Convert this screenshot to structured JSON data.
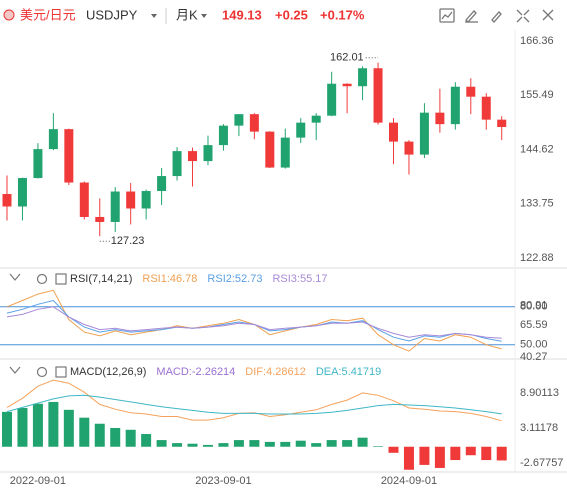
{
  "header": {
    "name": "美元/日元",
    "symbol": "USDJPY",
    "period": "月K",
    "price": "149.13",
    "change": "+0.25",
    "change_pct": "+0.17%"
  },
  "chart_data": [
    {
      "type": "candlestick",
      "categories": [
        null,
        null,
        "2022-09-01",
        null,
        null,
        null,
        null,
        null,
        null,
        null,
        null,
        null,
        null,
        null,
        "2023-09-01",
        null,
        null,
        null,
        null,
        null,
        null,
        null,
        null,
        null,
        null,
        null,
        "2024-09-01",
        null,
        null,
        null,
        null,
        null,
        null
      ],
      "open": [
        135.7,
        133.2,
        138.9,
        144.7,
        148.7,
        138.0,
        131.1,
        130.1,
        136.2,
        132.8,
        136.3,
        139.3,
        144.3,
        142.3,
        145.5,
        149.4,
        151.7,
        148.2,
        141.0,
        147.0,
        150.0,
        151.4,
        157.8,
        157.3,
        160.9,
        150.0,
        146.2,
        143.6,
        152.0,
        149.7,
        157.2,
        155.2,
        150.6
      ],
      "high": [
        139.4,
        139.0,
        145.9,
        151.9,
        148.8,
        138.2,
        134.8,
        137.1,
        137.9,
        136.6,
        140.9,
        145.1,
        145.0,
        147.4,
        149.7,
        151.7,
        151.9,
        148.3,
        148.8,
        150.9,
        151.9,
        160.2,
        157.9,
        161.3,
        162.01,
        150.9,
        146.5,
        153.9,
        156.8,
        158.1,
        158.9,
        155.9,
        151.3
      ],
      "low": [
        130.4,
        130.4,
        138.8,
        144.5,
        137.5,
        130.6,
        127.23,
        128.1,
        129.6,
        130.6,
        133.5,
        138.4,
        137.2,
        141.5,
        144.4,
        147.3,
        146.7,
        140.9,
        140.8,
        145.9,
        146.5,
        151.3,
        151.9,
        154.5,
        149.6,
        141.7,
        139.6,
        142.9,
        148.0,
        148.6,
        151.7,
        148.6,
        146.5
      ],
      "close": [
        133.2,
        138.9,
        144.7,
        148.7,
        138.0,
        131.1,
        130.1,
        136.2,
        132.8,
        136.3,
        139.3,
        144.3,
        142.3,
        145.5,
        149.4,
        151.7,
        148.2,
        141.0,
        147.0,
        150.0,
        151.4,
        157.8,
        157.3,
        160.9,
        150.0,
        146.2,
        143.6,
        152.0,
        149.7,
        157.2,
        155.2,
        150.6,
        149.13
      ],
      "up_color": "#20a36f",
      "down_color": "#f03a3a",
      "ylim": [
        122.88,
        166.36
      ],
      "yticks": [
        166.36,
        155.49,
        144.62,
        133.75,
        122.88
      ],
      "annotations": [
        {
          "label": "162.01",
          "value": 162.01
        },
        {
          "label": "127.23",
          "value": 127.23
        }
      ]
    },
    {
      "type": "line",
      "title": "RSI(7,14,21)",
      "series": [
        {
          "name": "RSI1:46.78",
          "color": "#f0a050",
          "values": [
            80,
            85,
            90,
            93,
            70,
            60,
            57,
            61,
            58,
            60,
            62,
            65,
            63,
            65,
            67,
            70,
            66,
            58,
            61,
            64,
            66,
            70,
            69,
            71,
            58,
            50,
            45,
            55,
            53,
            58,
            56,
            50,
            46.78
          ]
        },
        {
          "name": "RSI2:52.73",
          "color": "#5aa0e6",
          "values": [
            75,
            78,
            82,
            85,
            72,
            64,
            60,
            62,
            60,
            61,
            62,
            64,
            63,
            64,
            66,
            68,
            66,
            61,
            62,
            64,
            65,
            68,
            67,
            69,
            62,
            56,
            53,
            57,
            56,
            59,
            58,
            55,
            52.73
          ]
        },
        {
          "name": "RSI3:55.17",
          "color": "#a78ad8",
          "values": [
            72,
            74,
            78,
            80,
            72,
            66,
            62,
            63,
            61,
            62,
            63,
            64,
            63,
            64,
            65,
            67,
            66,
            62,
            63,
            64,
            65,
            67,
            67,
            68,
            63,
            59,
            56,
            58,
            57,
            59,
            58,
            56,
            55.17
          ]
        }
      ],
      "hlines": [
        80,
        50
      ],
      "hline_color": "#4a90d9",
      "ylim": [
        38,
        98
      ],
      "yticks": [
        80.91,
        {
          "value": 80,
          "label": "80.00"
        },
        65.59,
        {
          "value": 50,
          "label": "50.00"
        },
        40.27
      ]
    },
    {
      "type": "macd",
      "title": "MACD(12,26,9)",
      "series": [
        {
          "name": "MACD:-2.26214",
          "color": "#9b6fd0",
          "style": "bar",
          "up_color": "#20a36f",
          "down_color": "#f03a3a",
          "values": [
            5.76,
            6.4,
            7.1,
            7.4,
            6.1,
            4.8,
            3.8,
            3.1,
            2.8,
            2.1,
            1.1,
            0.6,
            0.5,
            0.3,
            0.6,
            1.1,
            1.1,
            0.8,
            0.8,
            1.0,
            0.6,
            1.1,
            1.1,
            1.5,
            0.1,
            -1.0,
            -3.8,
            -3.0,
            -3.5,
            -2.2,
            -1.4,
            -2.2,
            -2.26214
          ]
        },
        {
          "name": "DIF:4.28612",
          "color": "#f5a25c",
          "style": "line",
          "values": [
            6.5,
            8,
            10,
            11,
            10.5,
            9,
            7,
            6.2,
            5.6,
            5.4,
            5.0,
            5.0,
            4.4,
            4.4,
            4.8,
            5.5,
            5.6,
            5.0,
            5.3,
            5.7,
            6.1,
            7.0,
            7.7,
            8.9,
            8.5,
            7.6,
            6.4,
            6.2,
            5.9,
            5.8,
            5.5,
            5.0,
            4.28612
          ]
        },
        {
          "name": "DEA:5.41719",
          "color": "#3fb7c6",
          "style": "line",
          "values": [
            5.8,
            6.5,
            7.2,
            7.9,
            8.4,
            8.5,
            8.2,
            7.8,
            7.4,
            7.0,
            6.6,
            6.3,
            6.0,
            5.7,
            5.5,
            5.5,
            5.5,
            5.4,
            5.4,
            5.4,
            5.5,
            5.7,
            6.0,
            6.4,
            6.8,
            7.0,
            6.9,
            6.8,
            6.6,
            6.4,
            6.1,
            5.8,
            5.41719
          ]
        }
      ],
      "ylim": [
        -3.84,
        13.5
      ],
      "yticks": [
        8.90113,
        3.11178,
        -2.67757
      ]
    }
  ]
}
